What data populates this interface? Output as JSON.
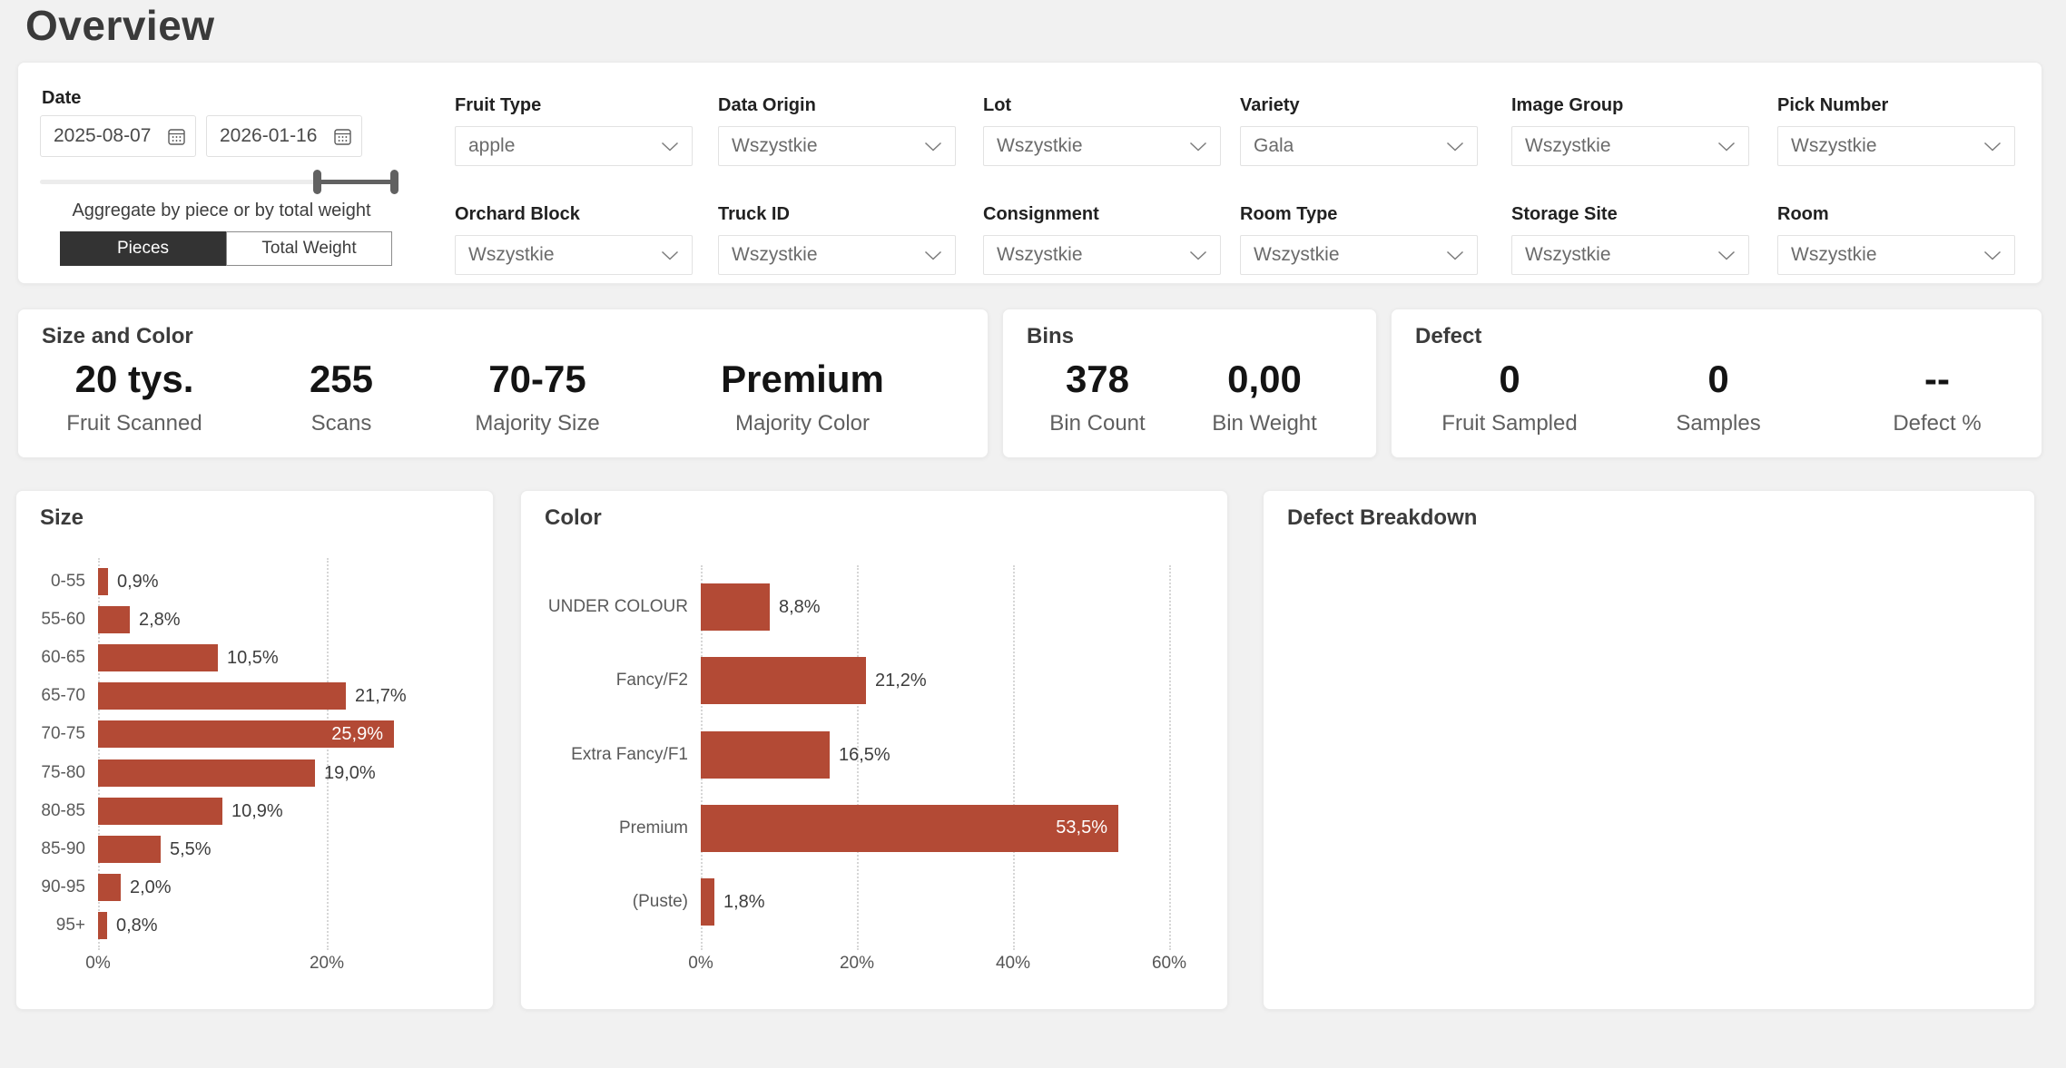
{
  "page": {
    "title": "Overview",
    "background_color": "#f1f1f1"
  },
  "colors": {
    "bar": "#b34a35",
    "toggle_selected_bg": "#333333",
    "slider": "#616161",
    "card_bg": "#ffffff"
  },
  "icons": {
    "calendar": "calendar-icon",
    "chevron": "chevron-down-icon"
  },
  "filter_panel": {
    "date": {
      "label": "Date",
      "start_value": "2025-08-07",
      "end_value": "2026-01-16",
      "caption": "Aggregate by piece or by total weight",
      "toggle_options": [
        "Pieces",
        "Total Weight"
      ],
      "toggle_selected": "Pieces"
    },
    "dropdowns": [
      {
        "label": "Fruit Type",
        "value": "apple"
      },
      {
        "label": "Data Origin",
        "value": "Wszystkie"
      },
      {
        "label": "Lot",
        "value": "Wszystkie"
      },
      {
        "label": "Variety",
        "value": "Gala"
      },
      {
        "label": "Image Group",
        "value": "Wszystkie"
      },
      {
        "label": "Pick Number",
        "value": "Wszystkie"
      },
      {
        "label": "Orchard Block",
        "value": "Wszystkie"
      },
      {
        "label": "Truck ID",
        "value": "Wszystkie"
      },
      {
        "label": "Consignment",
        "value": "Wszystkie"
      },
      {
        "label": "Room Type",
        "value": "Wszystkie"
      },
      {
        "label": "Storage Site",
        "value": "Wszystkie"
      },
      {
        "label": "Room",
        "value": "Wszystkie"
      }
    ]
  },
  "kpi_cards": [
    {
      "title": "Size and Color",
      "items": [
        {
          "value": "20 tys.",
          "label": "Fruit Scanned"
        },
        {
          "value": "255",
          "label": "Scans"
        },
        {
          "value": "70-75",
          "label": "Majority Size"
        },
        {
          "value": "Premium",
          "label": "Majority Color"
        }
      ]
    },
    {
      "title": "Bins",
      "items": [
        {
          "value": "378",
          "label": "Bin Count"
        },
        {
          "value": "0,00",
          "label": "Bin Weight"
        }
      ]
    },
    {
      "title": "Defect",
      "items": [
        {
          "value": "0",
          "label": "Fruit Sampled"
        },
        {
          "value": "0",
          "label": "Samples"
        },
        {
          "value": "--",
          "label": "Defect %"
        }
      ]
    }
  ],
  "chart_data": [
    {
      "type": "bar",
      "orientation": "horizontal",
      "title": "Size",
      "categories": [
        "0-55",
        "55-60",
        "60-65",
        "65-70",
        "70-75",
        "75-80",
        "80-85",
        "85-90",
        "90-95",
        "95+"
      ],
      "values": [
        0.9,
        2.8,
        10.5,
        21.7,
        25.9,
        19.0,
        10.9,
        5.5,
        2.0,
        0.8
      ],
      "value_labels": [
        "0,9%",
        "2,8%",
        "10,5%",
        "21,7%",
        "25,9%",
        "19,0%",
        "10,9%",
        "5,5%",
        "2,0%",
        "0,8%"
      ],
      "xticks": [
        0,
        20
      ],
      "xtick_labels": [
        "0%",
        "20%"
      ],
      "xlim": [
        0,
        34
      ],
      "grid": true,
      "legend": false,
      "bar_color": "#b34a35"
    },
    {
      "type": "bar",
      "orientation": "horizontal",
      "title": "Color",
      "categories": [
        "UNDER COLOUR",
        "Fancy/F2",
        "Extra Fancy/F1",
        "Premium",
        "(Puste)"
      ],
      "values": [
        8.8,
        21.2,
        16.5,
        53.5,
        1.8
      ],
      "value_labels": [
        "8,8%",
        "21,2%",
        "16,5%",
        "53,5%",
        "1,8%"
      ],
      "xticks": [
        0,
        20,
        40,
        60
      ],
      "xtick_labels": [
        "0%",
        "20%",
        "40%",
        "60%"
      ],
      "xlim": [
        0,
        68
      ],
      "grid": true,
      "legend": false,
      "bar_color": "#b34a35"
    },
    {
      "type": "empty",
      "title": "Defect Breakdown",
      "categories": [],
      "values": []
    }
  ]
}
